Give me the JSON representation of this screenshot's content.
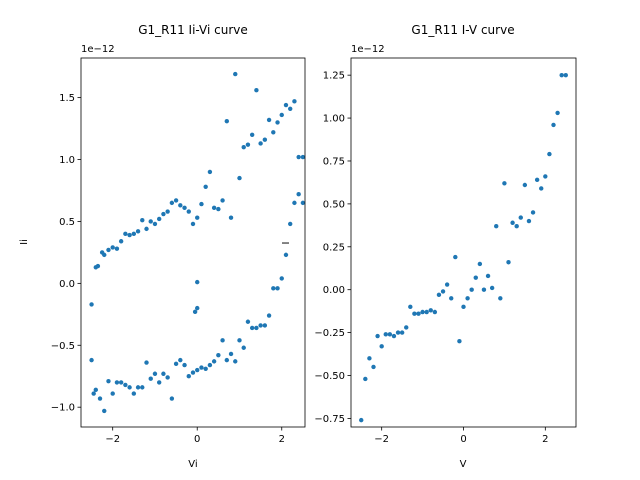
{
  "chart_data": [
    {
      "type": "scatter",
      "title": "G1_R11 Ii-Vi curve",
      "xlabel": "Vi",
      "ylabel": "Ii",
      "offset_text": "1e−12",
      "yscale": 1e-12,
      "xlim": [
        -2.75,
        2.55
      ],
      "ylim": [
        -1.16,
        1.82
      ],
      "xticks": [
        -2,
        0,
        2
      ],
      "xtick_labels": [
        "−2",
        "0",
        "2"
      ],
      "yticks": [
        -1.0,
        -0.5,
        0.0,
        0.5,
        1.0,
        1.5
      ],
      "ytick_labels": [
        "−1.0",
        "−0.5",
        "0.0",
        "0.5",
        "1.0",
        "1.5"
      ],
      "grid": false,
      "marker_color": "#1f77b4",
      "series": [
        {
          "x": [
            -2.5,
            -2.4,
            -2.35,
            -2.25,
            -2.2,
            -2.1,
            -2.0,
            -1.9,
            -1.8,
            -1.7,
            -1.6,
            -1.5,
            -1.4,
            -1.3,
            -1.2,
            -1.1,
            -1.0,
            -0.9,
            -0.8,
            -0.7,
            -0.6,
            -0.5,
            -0.4,
            -0.3,
            -0.2,
            -0.1,
            0.0,
            0.1,
            0.2,
            0.3,
            0.4,
            0.5,
            0.6,
            0.7,
            0.8,
            0.9,
            1.0,
            1.1,
            1.2,
            1.3,
            1.4,
            1.5,
            1.6,
            1.7,
            1.8,
            1.9,
            2.0,
            2.1,
            2.2,
            2.3,
            2.4,
            2.5
          ],
          "y": [
            -0.17,
            0.13,
            0.14,
            0.25,
            0.23,
            0.27,
            0.29,
            0.28,
            0.34,
            0.4,
            0.39,
            0.4,
            0.42,
            0.51,
            0.44,
            0.5,
            0.48,
            0.52,
            0.56,
            0.58,
            0.65,
            0.67,
            0.63,
            0.61,
            0.58,
            0.48,
            0.53,
            0.64,
            0.78,
            0.9,
            0.61,
            0.6,
            0.67,
            1.31,
            0.53,
            1.69,
            0.85,
            1.1,
            1.12,
            1.2,
            1.56,
            1.13,
            1.16,
            1.32,
            1.22,
            1.3,
            1.36,
            1.44,
            1.41,
            1.47,
            1.02,
            0.65
          ],
          "note": ""
        },
        {
          "x": [
            -2.5,
            -2.45,
            -2.4,
            -2.3,
            -2.2,
            -2.1,
            -2.0,
            -1.9,
            -1.8,
            -1.7,
            -1.6,
            -1.5,
            -1.4,
            -1.3,
            -1.2,
            -1.1,
            -1.0,
            -0.9,
            -0.8,
            -0.7,
            -0.6,
            -0.5,
            -0.4,
            -0.3,
            -0.2,
            -0.1,
            0.0,
            0.1,
            0.2,
            0.3,
            0.4,
            0.5,
            0.6,
            0.7,
            0.8,
            0.9,
            1.0,
            1.1,
            1.2,
            1.3,
            1.4,
            1.5,
            1.6,
            1.7,
            1.8,
            1.9,
            2.0,
            2.1,
            2.2,
            2.3,
            2.4,
            2.5
          ],
          "y": [
            -0.62,
            -0.89,
            -0.86,
            -0.93,
            -1.03,
            -0.79,
            -0.89,
            -0.8,
            -0.8,
            -0.82,
            -0.84,
            -0.89,
            -0.84,
            -0.84,
            -0.64,
            -0.77,
            -0.73,
            -0.8,
            -0.73,
            -0.76,
            -0.93,
            -0.65,
            -0.62,
            -0.66,
            -0.75,
            -0.72,
            -0.7,
            -0.68,
            -0.69,
            -0.66,
            -0.63,
            -0.58,
            -0.46,
            -0.62,
            -0.57,
            -0.63,
            -0.46,
            -0.52,
            -0.31,
            -0.36,
            -0.36,
            -0.34,
            -0.34,
            -0.26,
            -0.04,
            -0.04,
            0.04,
            0.23,
            0.48,
            0.65,
            0.72,
            1.02
          ],
          "note": ""
        },
        {
          "x": [
            -0.05,
            0.0,
            0.0
          ],
          "y": [
            -0.23,
            0.01,
            -0.2
          ],
          "note": ""
        }
      ]
    },
    {
      "type": "scatter",
      "title": "G1_R11 I-V curve",
      "xlabel": "V",
      "ylabel": "I",
      "offset_text": "1e−12",
      "yscale": 1e-12,
      "xlim": [
        -2.75,
        2.75
      ],
      "ylim": [
        -0.8,
        1.35
      ],
      "xticks": [
        -2,
        0,
        2
      ],
      "xtick_labels": [
        "−2",
        "0",
        "2"
      ],
      "yticks": [
        -0.75,
        -0.5,
        -0.25,
        0.0,
        0.25,
        0.5,
        0.75,
        1.0,
        1.25
      ],
      "ytick_labels": [
        "−0.75",
        "−0.50",
        "−0.25",
        "0.00",
        "0.25",
        "0.50",
        "0.75",
        "1.00",
        "1.25"
      ],
      "grid": false,
      "marker_color": "#1f77b4",
      "series": [
        {
          "x": [
            -2.5,
            -2.4,
            -2.3,
            -2.2,
            -2.1,
            -2.0,
            -1.9,
            -1.8,
            -1.7,
            -1.6,
            -1.5,
            -1.4,
            -1.3,
            -1.2,
            -1.1,
            -1.0,
            -0.9,
            -0.8,
            -0.7,
            -0.6,
            -0.5,
            -0.4,
            -0.3,
            -0.2,
            -0.1,
            0.0,
            0.1,
            0.2,
            0.3,
            0.4,
            0.5,
            0.6,
            0.7,
            0.8,
            0.9,
            1.0,
            1.1,
            1.2,
            1.3,
            1.4,
            1.5,
            1.6,
            1.7,
            1.8,
            1.9,
            2.0,
            2.1,
            2.2,
            2.3,
            2.4,
            2.5
          ],
          "y": [
            -0.76,
            -0.52,
            -0.4,
            -0.45,
            -0.27,
            -0.33,
            -0.26,
            -0.26,
            -0.27,
            -0.25,
            -0.25,
            -0.22,
            -0.1,
            -0.14,
            -0.14,
            -0.13,
            -0.13,
            -0.12,
            -0.13,
            -0.03,
            -0.01,
            0.03,
            -0.05,
            0.19,
            -0.3,
            -0.1,
            -0.05,
            0.0,
            0.07,
            0.15,
            0.0,
            0.08,
            0.01,
            0.37,
            -0.05,
            0.62,
            0.16,
            0.39,
            0.37,
            0.42,
            0.61,
            0.4,
            0.45,
            0.64,
            0.59,
            0.66,
            0.79,
            0.96,
            1.03,
            1.25,
            1.25
          ],
          "note": ""
        }
      ]
    }
  ]
}
